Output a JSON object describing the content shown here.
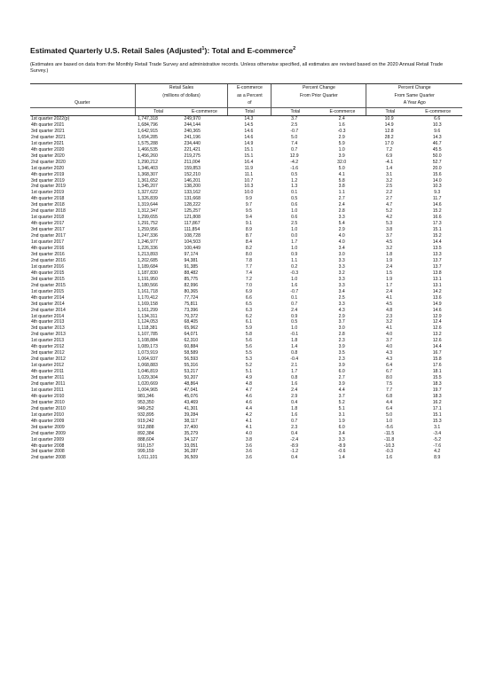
{
  "title": {
    "main": "Estimated Quarterly U.S. Retail Sales (Adjusted",
    "sup1": "1",
    "mid": "): Total and E-commerce",
    "sup2": "2"
  },
  "note": "(Estimates are based on data from the Monthly Retail Trade Survey and administrative records. Unless otherwise specified, all estimates are revised based on the 2020 Annual Retail Trade Survey.)",
  "header": {
    "quarter": "Quarter",
    "retail_sales_line1": "Retail Sales",
    "retail_sales_line2": "(millions of dollars)",
    "ecom_pct_line1": "E-commerce",
    "ecom_pct_line2": "as a Percent",
    "ecom_pct_line3": "of",
    "ecom_pct_line4": "Total",
    "prior_line1": "Percent Change",
    "prior_line2": "From Prior Quarter",
    "same_line1": "Percent Change",
    "same_line2": "From Same Quarter",
    "same_line3": "A Year Ago",
    "total": "Total",
    "ecommerce": "E-commerce"
  },
  "rows": [
    [
      "1st quarter 2022(p)",
      "1,747,318",
      "249,970",
      "14.3",
      "3.7",
      "2.4",
      "10.9",
      "6.6"
    ],
    [
      "4th quarter 2021",
      "1,684,796",
      "244,144",
      "14.5",
      "2.5",
      "1.6",
      "14.9",
      "10.3"
    ],
    [
      "3rd quarter 2021",
      "1,642,915",
      "240,365",
      "14.6",
      "-0.7",
      "-0.3",
      "12.8",
      "9.6"
    ],
    [
      "2nd quarter 2021",
      "1,654,285",
      "241,196",
      "14.6",
      "5.0",
      "2.9",
      "28.2",
      "14.3"
    ],
    [
      "1st quarter 2021",
      "1,575,288",
      "234,440",
      "14.9",
      "7.4",
      "5.9",
      "17.0",
      "46.7"
    ],
    [
      "4th quarter 2020",
      "1,466,535",
      "221,421",
      "15.1",
      "0.7",
      "1.0",
      "7.2",
      "45.5"
    ],
    [
      "3rd quarter 2020",
      "1,456,260",
      "219,275",
      "15.1",
      "12.9",
      "3.9",
      "6.9",
      "50.0"
    ],
    [
      "2nd quarter 2020",
      "1,290,212",
      "211,004",
      "16.4",
      "-4.2",
      "32.0",
      "-4.1",
      "52.7"
    ],
    [
      "1st quarter 2020",
      "1,346,403",
      "159,853",
      "11.9",
      "-1.6",
      "5.0",
      "1.4",
      "20.0"
    ],
    [
      "4th quarter 2019",
      "1,368,307",
      "152,210",
      "11.1",
      "0.5",
      "4.1",
      "3.1",
      "15.6"
    ],
    [
      "3rd quarter 2019",
      "1,361,652",
      "146,201",
      "10.7",
      "1.2",
      "5.8",
      "3.2",
      "14.0"
    ],
    [
      "2nd quarter 2019",
      "1,345,207",
      "138,200",
      "10.3",
      "1.3",
      "3.8",
      "2.5",
      "10.3"
    ],
    [
      "1st quarter 2019",
      "1,327,622",
      "133,162",
      "10.0",
      "0.1",
      "1.1",
      "2.2",
      "9.3"
    ],
    [
      "4th quarter 2018",
      "1,326,839",
      "131,668",
      "9.9",
      "0.5",
      "2.7",
      "2.7",
      "11.7"
    ],
    [
      "3rd quarter 2018",
      "1,319,644",
      "128,222",
      "9.7",
      "0.6",
      "2.4",
      "4.7",
      "14.6"
    ],
    [
      "2nd quarter 2018",
      "1,312,347",
      "125,257",
      "9.5",
      "1.0",
      "2.8",
      "5.2",
      "15.2"
    ],
    [
      "1st quarter 2018",
      "1,299,655",
      "121,808",
      "9.4",
      "0.6",
      "3.3",
      "4.2",
      "16.6"
    ],
    [
      "4th quarter 2017",
      "1,291,752",
      "117,867",
      "9.1",
      "2.5",
      "5.4",
      "5.3",
      "17.3"
    ],
    [
      "3rd quarter 2017",
      "1,259,956",
      "111,854",
      "8.9",
      "1.0",
      "2.9",
      "3.8",
      "15.1"
    ],
    [
      "2nd quarter 2017",
      "1,247,336",
      "108,728",
      "8.7",
      "0.0",
      "4.0",
      "3.7",
      "15.2"
    ],
    [
      "1st quarter 2017",
      "1,246,977",
      "104,503",
      "8.4",
      "1.7",
      "4.0",
      "4.5",
      "14.4"
    ],
    [
      "4th quarter 2016",
      "1,226,336",
      "100,449",
      "8.2",
      "1.0",
      "3.4",
      "3.2",
      "13.5"
    ],
    [
      "3rd quarter 2016",
      "1,213,893",
      "97,174",
      "8.0",
      "0.9",
      "3.0",
      "1.8",
      "13.3"
    ],
    [
      "2nd quarter 2016",
      "1,202,685",
      "94,381",
      "7.8",
      "1.1",
      "3.3",
      "1.9",
      "13.7"
    ],
    [
      "1st quarter 2016",
      "1,189,684",
      "91,385",
      "7.7",
      "0.2",
      "3.3",
      "2.4",
      "13.7"
    ],
    [
      "4th quarter 2015",
      "1,187,830",
      "88,482",
      "7.4",
      "-0.3",
      "3.2",
      "1.5",
      "13.8"
    ],
    [
      "3rd quarter 2015",
      "1,191,950",
      "85,775",
      "7.2",
      "1.0",
      "3.3",
      "1.9",
      "13.1"
    ],
    [
      "2nd quarter 2015",
      "1,180,566",
      "82,996",
      "7.0",
      "1.6",
      "3.3",
      "1.7",
      "13.1"
    ],
    [
      "1st quarter 2015",
      "1,161,718",
      "80,365",
      "6.9",
      "-0.7",
      "3.4",
      "2.4",
      "14.2"
    ],
    [
      "4th quarter 2014",
      "1,170,412",
      "77,724",
      "6.6",
      "0.1",
      "2.5",
      "4.1",
      "13.6"
    ],
    [
      "3rd quarter 2014",
      "1,169,158",
      "75,811",
      "6.5",
      "0.7",
      "3.3",
      "4.5",
      "14.9"
    ],
    [
      "2nd quarter 2014",
      "1,161,299",
      "73,396",
      "6.3",
      "2.4",
      "4.3",
      "4.8",
      "14.6"
    ],
    [
      "1st quarter 2014",
      "1,134,311",
      "70,372",
      "6.2",
      "0.9",
      "2.9",
      "2.3",
      "12.9"
    ],
    [
      "4th quarter 2013",
      "1,124,053",
      "68,405",
      "6.1",
      "0.5",
      "3.7",
      "3.2",
      "12.4"
    ],
    [
      "3rd quarter 2013",
      "1,118,381",
      "65,962",
      "5.9",
      "1.0",
      "3.0",
      "4.1",
      "12.6"
    ],
    [
      "2nd quarter 2013",
      "1,107,785",
      "64,071",
      "5.8",
      "-0.1",
      "2.8",
      "4.0",
      "13.2"
    ],
    [
      "1st quarter 2013",
      "1,108,884",
      "62,310",
      "5.6",
      "1.8",
      "2.3",
      "3.7",
      "12.6"
    ],
    [
      "4th quarter 2012",
      "1,089,173",
      "60,884",
      "5.6",
      "1.4",
      "3.9",
      "4.0",
      "14.4"
    ],
    [
      "3rd quarter 2012",
      "1,073,919",
      "58,589",
      "5.5",
      "0.8",
      "3.5",
      "4.3",
      "16.7"
    ],
    [
      "2nd quarter 2012",
      "1,064,937",
      "56,593",
      "5.3",
      "-0.4",
      "2.3",
      "4.3",
      "15.8"
    ],
    [
      "1st quarter 2012",
      "1,068,883",
      "55,316",
      "5.2",
      "2.1",
      "3.9",
      "6.4",
      "17.6"
    ],
    [
      "4th quarter 2011",
      "1,046,819",
      "53,217",
      "5.1",
      "1.7",
      "6.0",
      "6.7",
      "18.1"
    ],
    [
      "3rd quarter 2011",
      "1,029,304",
      "50,207",
      "4.9",
      "0.8",
      "2.7",
      "8.0",
      "15.5"
    ],
    [
      "2nd quarter 2011",
      "1,020,669",
      "48,864",
      "4.8",
      "1.6",
      "3.9",
      "7.5",
      "18.3"
    ],
    [
      "1st quarter 2011",
      "1,004,965",
      "47,041",
      "4.7",
      "2.4",
      "4.4",
      "7.7",
      "19.7"
    ],
    [
      "4th quarter 2010",
      "981,346",
      "45,076",
      "4.6",
      "2.9",
      "3.7",
      "6.8",
      "18.3"
    ],
    [
      "3rd quarter 2010",
      "953,350",
      "43,469",
      "4.6",
      "0.4",
      "5.2",
      "4.4",
      "16.2"
    ],
    [
      "2nd quarter 2010",
      "949,252",
      "41,301",
      "4.4",
      "1.8",
      "5.1",
      "6.4",
      "17.1"
    ],
    [
      "1st quarter 2010",
      "932,895",
      "39,284",
      "4.2",
      "1.6",
      "3.1",
      "5.0",
      "15.1"
    ],
    [
      "4th quarter 2009",
      "919,242",
      "38,117",
      "4.1",
      "0.7",
      "1.9",
      "1.0",
      "15.3"
    ],
    [
      "3rd quarter 2009",
      "912,888",
      "37,400",
      "4.1",
      "2.3",
      "6.0",
      "-5.6",
      "3.1"
    ],
    [
      "2nd quarter 2009",
      "892,384",
      "35,279",
      "4.0",
      "0.4",
      "3.4",
      "-11.5",
      "-3.4"
    ],
    [
      "1st quarter 2009",
      "888,604",
      "34,127",
      "3.8",
      "-2.4",
      "3.3",
      "-11.8",
      "-5.2"
    ],
    [
      "4th quarter 2008",
      "910,157",
      "33,051",
      "3.6",
      "-8.9",
      "-8.9",
      "-10.3",
      "-7.6"
    ],
    [
      "3rd quarter 2008",
      "999,159",
      "36,287",
      "3.6",
      "-1.2",
      "-0.6",
      "-0.3",
      "4.2"
    ],
    [
      "2nd quarter 2008",
      "1,011,101",
      "36,509",
      "3.6",
      "0.4",
      "1.4",
      "1.6",
      "8.9"
    ]
  ]
}
